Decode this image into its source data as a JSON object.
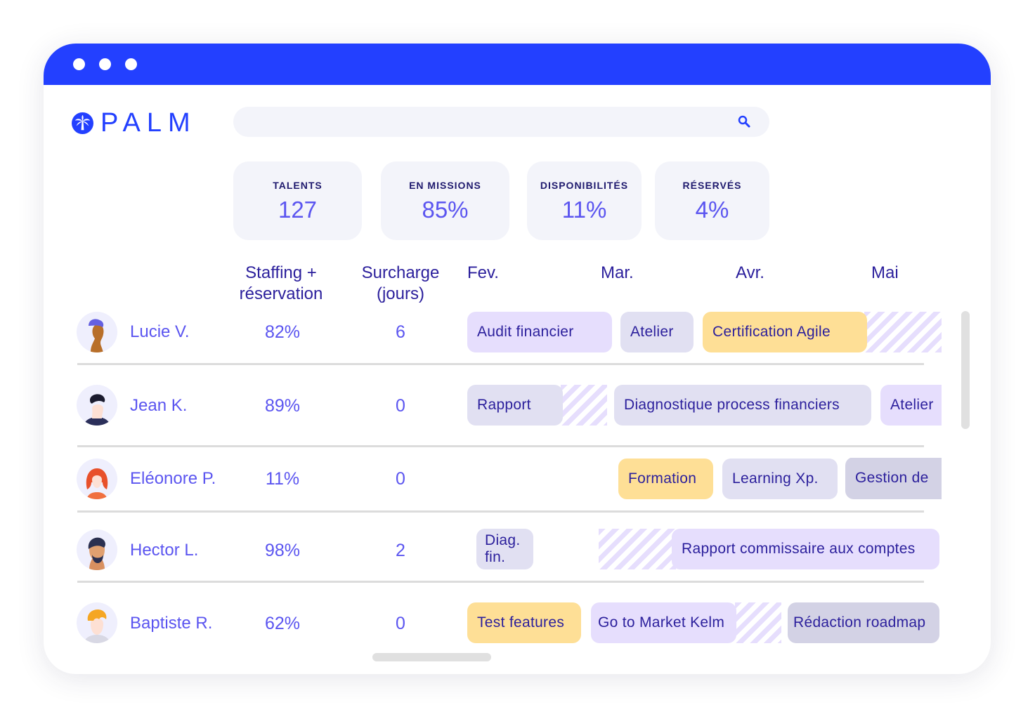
{
  "app": {
    "name": "PALM",
    "brand_color": "#2340ff",
    "logo_icon": "palm-tree-icon"
  },
  "search": {
    "placeholder": "",
    "icon": "search-icon"
  },
  "stats": [
    {
      "label": "TALENTS",
      "value": "127"
    },
    {
      "label": "EN MISSIONS",
      "value": "85%"
    },
    {
      "label": "DISPONIBILITÉS",
      "value": "11%"
    },
    {
      "label": "RÉSERVÉS",
      "value": "4%"
    }
  ],
  "columns": {
    "staffing": [
      "Staffing +",
      "réservation"
    ],
    "surcharge": [
      "Surcharge",
      "(jours)"
    ],
    "months": [
      "Fev.",
      "Mar.",
      "Avr.",
      "Mai"
    ]
  },
  "rows": [
    {
      "name": "Lucie V.",
      "staffing": "82%",
      "surcharge": "6",
      "tasks": [
        {
          "label": "Audit financier",
          "kind": "mission"
        },
        {
          "label": "Atelier",
          "kind": "internal"
        },
        {
          "label": "Certification Agile",
          "kind": "training"
        }
      ]
    },
    {
      "name": "Jean K.",
      "staffing": "89%",
      "surcharge": "0",
      "tasks": [
        {
          "label": "Rapport",
          "kind": "internal"
        },
        {
          "label": "Diagnostique process financiers",
          "kind": "internal"
        },
        {
          "label": "Atelier",
          "kind": "mission"
        }
      ]
    },
    {
      "name": "Eléonore P.",
      "staffing": "11%",
      "surcharge": "0",
      "tasks": [
        {
          "label": "Formation",
          "kind": "training"
        },
        {
          "label": "Learning Xp.",
          "kind": "internal"
        },
        {
          "label": "Gestion de",
          "kind": "reserved"
        }
      ]
    },
    {
      "name": "Hector L.",
      "staffing": "98%",
      "surcharge": "2",
      "tasks": [
        {
          "label": "Diag.",
          "label2": "fin.",
          "kind": "internal"
        },
        {
          "label": "Rapport commissaire aux comptes",
          "kind": "mission"
        }
      ]
    },
    {
      "name": "Baptiste R.",
      "staffing": "62%",
      "surcharge": "0",
      "tasks": [
        {
          "label": "Test features",
          "kind": "training"
        },
        {
          "label": "Go to Market Kelm",
          "kind": "mission"
        },
        {
          "label": "Rédaction roadmap",
          "kind": "reserved"
        }
      ]
    }
  ],
  "colors": {
    "mission": "#e6defd",
    "internal": "#e1e0f2",
    "training": "#fedf96",
    "reserved": "#d3d2e5",
    "text": "#2b1f9c",
    "accent": "#5b55f0"
  }
}
